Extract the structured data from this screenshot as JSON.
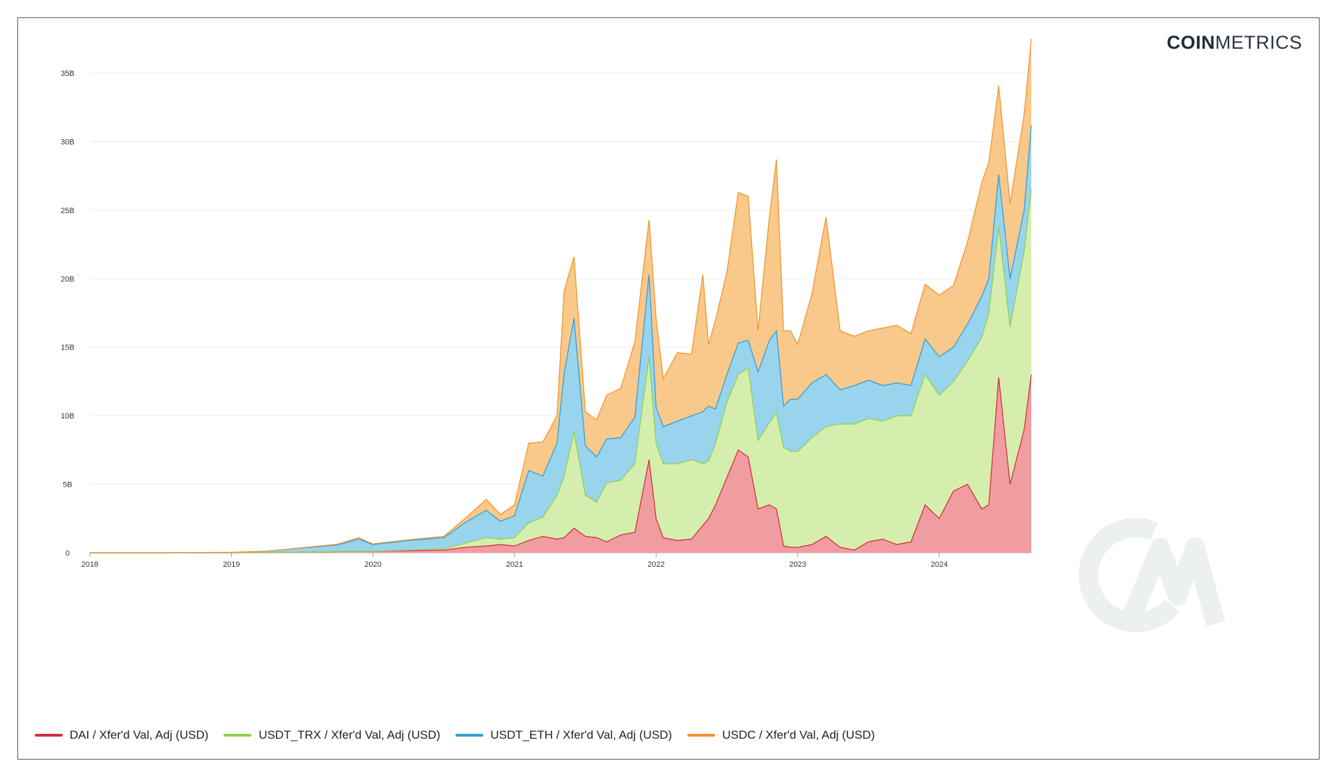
{
  "brand": {
    "bold": "COIN",
    "light": "METRICS"
  },
  "chart_data": {
    "type": "area",
    "stacked": true,
    "title": "",
    "xlabel": "",
    "ylabel": "",
    "x_ticks": [
      "2018",
      "2019",
      "2020",
      "2021",
      "2022",
      "2023",
      "2024"
    ],
    "y_ticks": [
      "0",
      "5B",
      "10B",
      "15B",
      "20B",
      "25B",
      "30B",
      "35B"
    ],
    "ylim": [
      0,
      38
    ],
    "xlim": [
      2018.0,
      2024.65
    ],
    "y_unit": "B",
    "grid": true,
    "legend_position": "bottom-left",
    "x": [
      2018.0,
      2018.5,
      2019.0,
      2019.25,
      2019.5,
      2019.75,
      2019.9,
      2020.0,
      2020.25,
      2020.5,
      2020.65,
      2020.8,
      2020.9,
      2021.0,
      2021.1,
      2021.2,
      2021.3,
      2021.35,
      2021.42,
      2021.5,
      2021.58,
      2021.65,
      2021.75,
      2021.85,
      2021.95,
      2022.0,
      2022.05,
      2022.15,
      2022.25,
      2022.33,
      2022.37,
      2022.42,
      2022.5,
      2022.58,
      2022.65,
      2022.72,
      2022.8,
      2022.85,
      2022.9,
      2022.95,
      2023.0,
      2023.1,
      2023.2,
      2023.3,
      2023.4,
      2023.5,
      2023.6,
      2023.7,
      2023.8,
      2023.9,
      2024.0,
      2024.1,
      2024.2,
      2024.3,
      2024.35,
      2024.42,
      2024.5,
      2024.6,
      2024.65
    ],
    "series": [
      {
        "name": "DAI / Xfer'd Val, Adj (USD)",
        "color": "#d62f3a",
        "fill": "#ef989c",
        "values": [
          0.0,
          0.0,
          0.0,
          0.02,
          0.05,
          0.08,
          0.1,
          0.1,
          0.15,
          0.2,
          0.4,
          0.5,
          0.6,
          0.5,
          0.9,
          1.2,
          1.0,
          1.1,
          1.8,
          1.2,
          1.1,
          0.8,
          1.3,
          1.5,
          6.8,
          2.5,
          1.1,
          0.9,
          1.0,
          2.0,
          2.5,
          3.5,
          5.5,
          7.5,
          7.0,
          3.2,
          3.5,
          3.2,
          0.5,
          0.4,
          0.4,
          0.6,
          1.2,
          0.4,
          0.2,
          0.8,
          1.0,
          0.6,
          0.8,
          3.5,
          2.5,
          4.5,
          5.0,
          3.2,
          3.5,
          12.8,
          5.0,
          9.0,
          13.0
        ]
      },
      {
        "name": "USDT_TRX / Xfer'd Val, Adj (USD)",
        "color": "#8fd14f",
        "fill": "#d3edaa",
        "values": [
          0.0,
          0.0,
          0.0,
          0.0,
          0.0,
          0.0,
          0.0,
          0.0,
          0.05,
          0.1,
          0.3,
          0.6,
          0.4,
          0.6,
          1.3,
          1.4,
          3.2,
          4.5,
          7.0,
          3.0,
          2.6,
          4.3,
          4.0,
          5.0,
          7.5,
          5.5,
          5.4,
          5.6,
          5.8,
          4.5,
          4.2,
          4.5,
          5.5,
          5.5,
          6.5,
          5.0,
          6.0,
          7.0,
          7.2,
          7.0,
          7.0,
          7.8,
          8.0,
          9.0,
          9.2,
          9.0,
          8.6,
          9.4,
          9.2,
          9.5,
          9.0,
          8.0,
          9.0,
          12.5,
          14.0,
          11.0,
          11.5,
          13.0,
          13.5
        ]
      },
      {
        "name": "USDT_ETH / Xfer'd Val, Adj (USD)",
        "color": "#2f9fd8",
        "fill": "#94d2ec",
        "values": [
          0.0,
          0.0,
          0.03,
          0.1,
          0.3,
          0.5,
          0.9,
          0.5,
          0.7,
          0.8,
          1.5,
          2.0,
          1.3,
          1.6,
          3.8,
          3.0,
          3.8,
          7.5,
          8.3,
          3.6,
          3.3,
          3.2,
          3.1,
          3.4,
          6.0,
          2.6,
          2.7,
          3.1,
          3.2,
          3.8,
          4.0,
          2.5,
          2.0,
          2.3,
          2.0,
          5.0,
          6.0,
          6.0,
          3.0,
          3.8,
          3.8,
          4.0,
          3.8,
          2.5,
          2.8,
          2.8,
          2.6,
          2.4,
          2.2,
          2.6,
          2.8,
          2.5,
          2.7,
          3.0,
          2.5,
          3.8,
          3.5,
          3.0,
          4.7
        ]
      },
      {
        "name": "USDC / Xfer'd Val, Adj (USD)",
        "color": "#f2962f",
        "fill": "#f9c585",
        "values": [
          0.0,
          0.0,
          0.0,
          0.0,
          0.02,
          0.05,
          0.1,
          0.05,
          0.05,
          0.1,
          0.3,
          0.8,
          0.5,
          0.8,
          2.0,
          2.5,
          2.0,
          6.0,
          4.5,
          2.5,
          2.7,
          3.2,
          3.6,
          5.5,
          4.0,
          6.5,
          3.5,
          5.0,
          4.5,
          10.0,
          4.5,
          6.5,
          7.5,
          11.0,
          10.5,
          3.0,
          9.0,
          12.5,
          5.5,
          5.0,
          4.0,
          6.5,
          11.5,
          4.3,
          3.6,
          3.6,
          4.2,
          4.2,
          3.8,
          4.0,
          4.5,
          4.5,
          6.0,
          8.3,
          8.5,
          6.5,
          5.5,
          7.0,
          6.3
        ]
      }
    ]
  }
}
